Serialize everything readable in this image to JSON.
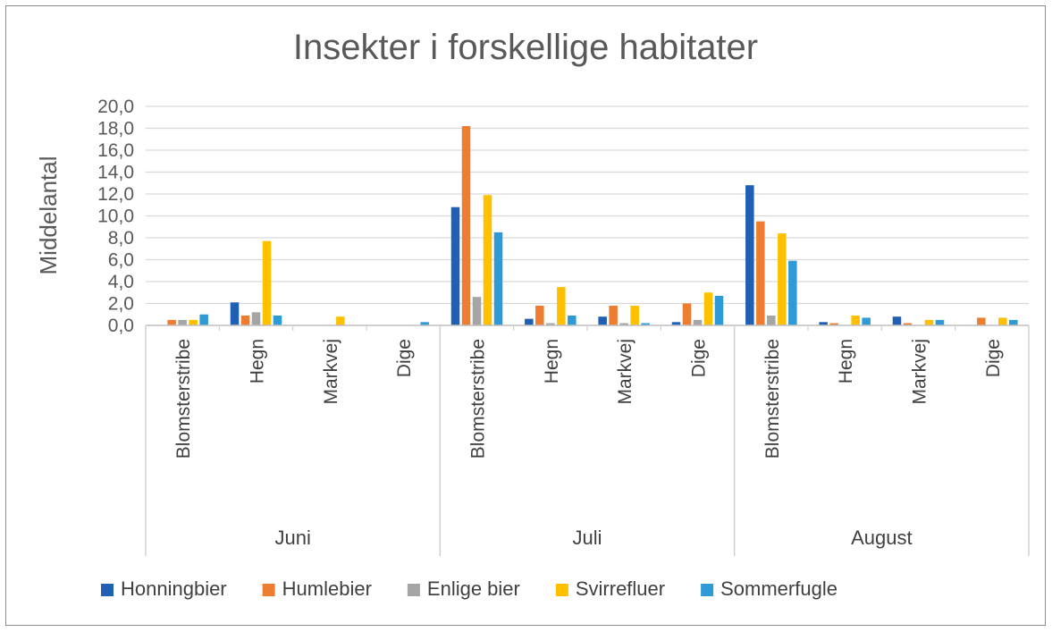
{
  "chart_data": {
    "type": "bar",
    "title": "Insekter i forskellige habitater",
    "ylabel": "Middelantal",
    "xlabel": "",
    "ylim": [
      0,
      20
    ],
    "yticks": [
      "0,0",
      "2,0",
      "4,0",
      "6,0",
      "8,0",
      "10,0",
      "12,0",
      "14,0",
      "16,0",
      "18,0",
      "20,0"
    ],
    "grid": true,
    "legend_position": "bottom",
    "groups": [
      {
        "label": "Juni",
        "categories": [
          "Blomsterstribe",
          "Hegn",
          "Markvej",
          "Dige"
        ]
      },
      {
        "label": "Juli",
        "categories": [
          "Blomsterstribe",
          "Hegn",
          "Markvej",
          "Dige"
        ]
      },
      {
        "label": "August",
        "categories": [
          "Blomsterstribe",
          "Hegn",
          "Markvej",
          "Dige"
        ]
      }
    ],
    "series": [
      {
        "name": "Honningbier",
        "color": "#1F5FB4",
        "values": [
          0.0,
          2.1,
          0.0,
          0.0,
          10.8,
          0.6,
          0.8,
          0.3,
          12.8,
          0.3,
          0.8,
          0.0
        ]
      },
      {
        "name": "Humlebier",
        "color": "#ED7D31",
        "values": [
          0.5,
          0.9,
          0.0,
          0.0,
          18.2,
          1.8,
          1.8,
          2.0,
          9.5,
          0.2,
          0.2,
          0.7
        ]
      },
      {
        "name": "Enlige bier",
        "color": "#A5A5A5",
        "values": [
          0.5,
          1.2,
          0.0,
          0.0,
          2.6,
          0.2,
          0.2,
          0.5,
          0.9,
          0.0,
          0.0,
          0.0
        ]
      },
      {
        "name": "Svirrefluer",
        "color": "#FFC000",
        "values": [
          0.5,
          7.7,
          0.8,
          0.0,
          11.9,
          3.5,
          1.8,
          3.0,
          8.4,
          0.9,
          0.5,
          0.7
        ]
      },
      {
        "name": "Sommerfugle",
        "color": "#2E9AD6",
        "values": [
          1.0,
          0.9,
          0.0,
          0.3,
          8.5,
          0.9,
          0.2,
          2.7,
          5.9,
          0.7,
          0.5,
          0.5
        ]
      }
    ]
  }
}
